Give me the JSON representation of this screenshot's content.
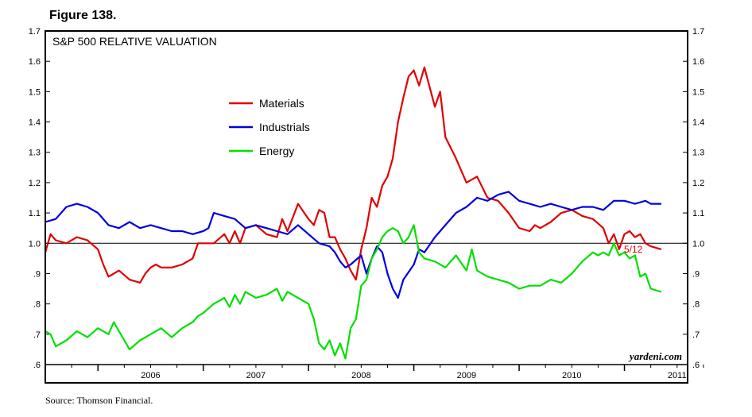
{
  "figure_label": "Figure 138.",
  "source_note": "Source: Thomson Financial.",
  "chart_data": {
    "type": "line",
    "title": "S&P 500 RELATIVE VALUATION",
    "credit": "yardeni.com",
    "end_label": "5/12",
    "ylim": [
      0.6,
      1.7
    ],
    "xlim": [
      2005.5,
      2011.6
    ],
    "y_ticks": [
      {
        "value": 1.7,
        "label": "1.7"
      },
      {
        "value": 1.6,
        "label": "1.6"
      },
      {
        "value": 1.5,
        "label": "1.5"
      },
      {
        "value": 1.4,
        "label": "1.4"
      },
      {
        "value": 1.3,
        "label": "1.3"
      },
      {
        "value": 1.2,
        "label": "1.2"
      },
      {
        "value": 1.1,
        "label": "1.1"
      },
      {
        "value": 1.0,
        "label": "1.0"
      },
      {
        "value": 0.9,
        "label": ".9"
      },
      {
        "value": 0.8,
        "label": ".8"
      },
      {
        "value": 0.7,
        "label": ".7"
      },
      {
        "value": 0.6,
        "label": ".6"
      }
    ],
    "year_labels": [
      "2006",
      "2007",
      "2008",
      "2009",
      "2010",
      "2011"
    ],
    "reference_line": 1.0,
    "legend": {
      "placement": "upper-left"
    },
    "colors": {
      "Materials": "#e00000",
      "Industrials": "#0000e0",
      "Energy": "#00e000"
    },
    "series": [
      {
        "name": "Materials",
        "x": [
          2005.5,
          2005.55,
          2005.6,
          2005.7,
          2005.8,
          2005.9,
          2006.0,
          2006.05,
          2006.1,
          2006.15,
          2006.2,
          2006.3,
          2006.4,
          2006.45,
          2006.5,
          2006.55,
          2006.6,
          2006.7,
          2006.8,
          2006.9,
          2006.95,
          2007.0,
          2007.1,
          2007.2,
          2007.25,
          2007.3,
          2007.35,
          2007.4,
          2007.5,
          2007.6,
          2007.7,
          2007.75,
          2007.8,
          2007.9,
          2008.0,
          2008.05,
          2008.1,
          2008.15,
          2008.2,
          2008.25,
          2008.3,
          2008.35,
          2008.4,
          2008.45,
          2008.5,
          2008.55,
          2008.6,
          2008.65,
          2008.7,
          2008.75,
          2008.8,
          2008.85,
          2008.9,
          2008.95,
          2009.0,
          2009.05,
          2009.1,
          2009.2,
          2009.25,
          2009.3,
          2009.4,
          2009.5,
          2009.6,
          2009.7,
          2009.8,
          2009.9,
          2010.0,
          2010.1,
          2010.15,
          2010.2,
          2010.3,
          2010.4,
          2010.5,
          2010.55,
          2010.6,
          2010.7,
          2010.8,
          2010.85,
          2010.9,
          2010.95,
          2011.0,
          2011.05,
          2011.1,
          2011.15,
          2011.2,
          2011.25,
          2011.35
        ],
        "values": [
          0.97,
          1.03,
          1.01,
          1.0,
          1.02,
          1.01,
          0.98,
          0.93,
          0.89,
          0.9,
          0.91,
          0.88,
          0.87,
          0.9,
          0.92,
          0.93,
          0.92,
          0.92,
          0.93,
          0.95,
          1.0,
          1.0,
          1.0,
          1.03,
          1.0,
          1.04,
          1.0,
          1.05,
          1.06,
          1.03,
          1.02,
          1.08,
          1.04,
          1.13,
          1.08,
          1.06,
          1.11,
          1.1,
          1.02,
          1.02,
          0.98,
          0.95,
          0.91,
          0.88,
          0.98,
          1.05,
          1.15,
          1.12,
          1.19,
          1.22,
          1.28,
          1.4,
          1.48,
          1.55,
          1.57,
          1.52,
          1.58,
          1.45,
          1.5,
          1.35,
          1.28,
          1.2,
          1.22,
          1.15,
          1.14,
          1.1,
          1.05,
          1.04,
          1.06,
          1.05,
          1.07,
          1.1,
          1.11,
          1.1,
          1.09,
          1.08,
          1.05,
          1.0,
          1.03,
          0.98,
          1.03,
          1.04,
          1.02,
          1.03,
          1.0,
          0.99,
          0.98
        ]
      },
      {
        "name": "Industrials",
        "x": [
          2005.5,
          2005.6,
          2005.7,
          2005.8,
          2005.9,
          2006.0,
          2006.1,
          2006.2,
          2006.3,
          2006.4,
          2006.5,
          2006.6,
          2006.7,
          2006.8,
          2006.9,
          2007.0,
          2007.05,
          2007.1,
          2007.2,
          2007.3,
          2007.4,
          2007.5,
          2007.6,
          2007.7,
          2007.8,
          2007.9,
          2008.0,
          2008.1,
          2008.2,
          2008.25,
          2008.3,
          2008.35,
          2008.4,
          2008.5,
          2008.55,
          2008.6,
          2008.65,
          2008.7,
          2008.75,
          2008.8,
          2008.85,
          2008.9,
          2009.0,
          2009.05,
          2009.1,
          2009.2,
          2009.3,
          2009.4,
          2009.5,
          2009.6,
          2009.7,
          2009.8,
          2009.9,
          2010.0,
          2010.1,
          2010.2,
          2010.3,
          2010.4,
          2010.5,
          2010.6,
          2010.7,
          2010.8,
          2010.9,
          2011.0,
          2011.1,
          2011.2,
          2011.25,
          2011.35
        ],
        "values": [
          1.07,
          1.08,
          1.12,
          1.13,
          1.12,
          1.1,
          1.06,
          1.05,
          1.07,
          1.05,
          1.06,
          1.05,
          1.04,
          1.04,
          1.03,
          1.04,
          1.05,
          1.1,
          1.09,
          1.08,
          1.05,
          1.06,
          1.05,
          1.04,
          1.03,
          1.06,
          1.03,
          1.0,
          0.99,
          0.97,
          0.94,
          0.92,
          0.93,
          0.96,
          0.9,
          0.95,
          0.99,
          0.97,
          0.9,
          0.85,
          0.82,
          0.88,
          0.93,
          0.98,
          0.97,
          1.02,
          1.06,
          1.1,
          1.12,
          1.15,
          1.14,
          1.16,
          1.17,
          1.14,
          1.13,
          1.12,
          1.13,
          1.12,
          1.11,
          1.12,
          1.12,
          1.11,
          1.14,
          1.14,
          1.13,
          1.14,
          1.13,
          1.13
        ]
      },
      {
        "name": "Energy",
        "x": [
          2005.5,
          2005.55,
          2005.6,
          2005.7,
          2005.8,
          2005.9,
          2006.0,
          2006.1,
          2006.15,
          2006.2,
          2006.3,
          2006.4,
          2006.5,
          2006.6,
          2006.7,
          2006.8,
          2006.9,
          2006.95,
          2007.0,
          2007.1,
          2007.2,
          2007.25,
          2007.3,
          2007.35,
          2007.4,
          2007.5,
          2007.6,
          2007.7,
          2007.75,
          2007.8,
          2007.9,
          2008.0,
          2008.05,
          2008.1,
          2008.15,
          2008.2,
          2008.25,
          2008.3,
          2008.35,
          2008.4,
          2008.45,
          2008.5,
          2008.55,
          2008.6,
          2008.65,
          2008.7,
          2008.75,
          2008.8,
          2008.85,
          2008.9,
          2008.95,
          2009.0,
          2009.05,
          2009.1,
          2009.2,
          2009.3,
          2009.4,
          2009.5,
          2009.55,
          2009.6,
          2009.7,
          2009.8,
          2009.9,
          2010.0,
          2010.1,
          2010.2,
          2010.3,
          2010.4,
          2010.5,
          2010.6,
          2010.7,
          2010.75,
          2010.8,
          2010.85,
          2010.9,
          2010.95,
          2011.0,
          2011.05,
          2011.1,
          2011.15,
          2011.2,
          2011.25,
          2011.35
        ],
        "values": [
          0.71,
          0.7,
          0.66,
          0.68,
          0.71,
          0.69,
          0.72,
          0.7,
          0.74,
          0.71,
          0.65,
          0.68,
          0.7,
          0.72,
          0.69,
          0.72,
          0.74,
          0.76,
          0.77,
          0.8,
          0.82,
          0.79,
          0.83,
          0.8,
          0.84,
          0.82,
          0.83,
          0.85,
          0.81,
          0.84,
          0.82,
          0.8,
          0.75,
          0.67,
          0.65,
          0.68,
          0.63,
          0.67,
          0.62,
          0.72,
          0.75,
          0.86,
          0.88,
          0.95,
          0.98,
          1.02,
          1.04,
          1.05,
          1.04,
          1.0,
          1.02,
          1.06,
          0.97,
          0.95,
          0.94,
          0.92,
          0.96,
          0.91,
          0.98,
          0.91,
          0.89,
          0.88,
          0.87,
          0.85,
          0.86,
          0.86,
          0.88,
          0.87,
          0.9,
          0.94,
          0.97,
          0.96,
          0.97,
          0.96,
          1.0,
          0.96,
          0.97,
          0.95,
          0.96,
          0.89,
          0.9,
          0.85,
          0.84
        ]
      }
    ]
  }
}
